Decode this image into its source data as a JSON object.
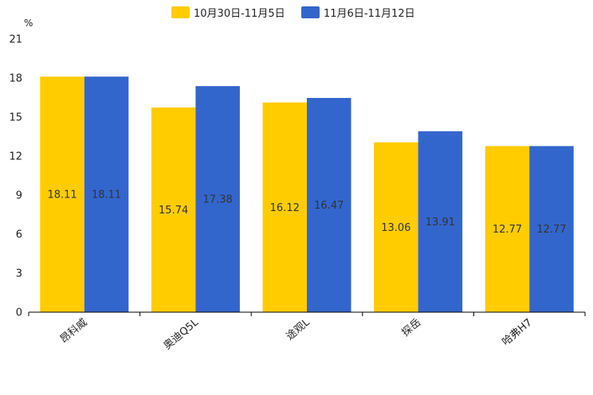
{
  "chart_data": {
    "type": "bar",
    "title": "",
    "ylabel": "%",
    "xlabel": "",
    "ylim": [
      0,
      21
    ],
    "yticks": [
      0,
      3,
      6,
      9,
      12,
      15,
      18,
      21
    ],
    "grid": false,
    "legend_position": "top-center",
    "categories": [
      "昂科威",
      "奥迪Q5L",
      "途观L",
      "探岳",
      "哈弗H7"
    ],
    "series": [
      {
        "name": "10月30日-11月5日",
        "color": "#FFCC00",
        "values": [
          18.11,
          15.74,
          16.12,
          13.06,
          12.77
        ]
      },
      {
        "name": "11月6日-11月12日",
        "color": "#3366CC",
        "values": [
          18.11,
          17.38,
          16.47,
          13.91,
          12.77
        ]
      }
    ]
  }
}
